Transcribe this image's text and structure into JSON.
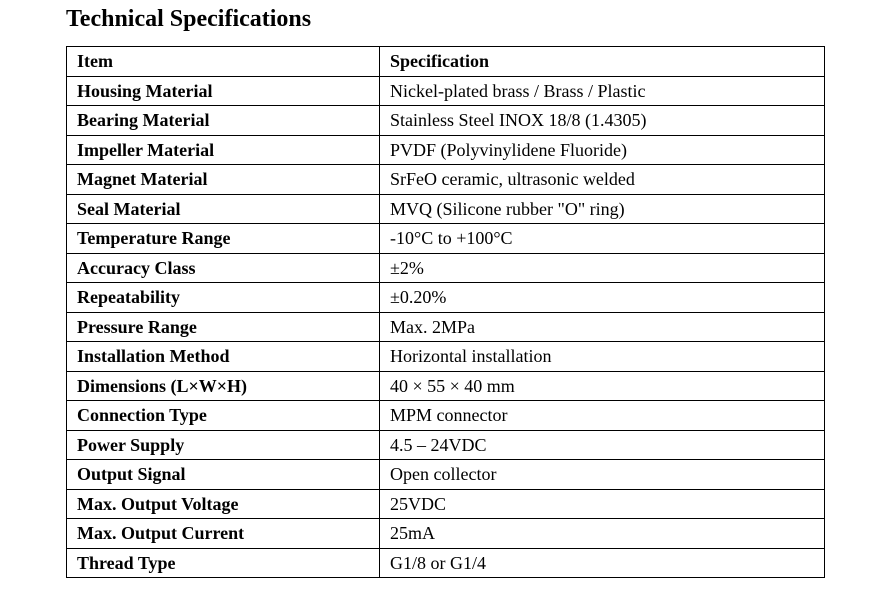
{
  "title": "Technical Specifications",
  "table": {
    "headers": [
      "Item",
      "Specification"
    ],
    "rows": [
      [
        "Housing Material",
        "Nickel-plated brass / Brass / Plastic"
      ],
      [
        "Bearing Material",
        "Stainless Steel INOX 18/8 (1.4305)"
      ],
      [
        "Impeller Material",
        "PVDF (Polyvinylidene Fluoride)"
      ],
      [
        "Magnet Material",
        "SrFeO ceramic, ultrasonic welded"
      ],
      [
        "Seal Material",
        "MVQ (Silicone rubber \"O\" ring)"
      ],
      [
        "Temperature Range",
        "-10°C to +100°C"
      ],
      [
        "Accuracy Class",
        "±2%"
      ],
      [
        "Repeatability",
        "±0.20%"
      ],
      [
        "Pressure Range",
        "Max. 2MPa"
      ],
      [
        "Installation Method",
        "Horizontal installation"
      ],
      [
        "Dimensions (L×W×H)",
        "40 × 55 × 40 mm"
      ],
      [
        "Connection Type",
        "MPM connector"
      ],
      [
        "Power Supply",
        "4.5 – 24VDC"
      ],
      [
        "Output Signal",
        "Open collector"
      ],
      [
        "Max. Output Voltage",
        "25VDC"
      ],
      [
        "Max. Output Current",
        "25mA"
      ],
      [
        "Thread Type",
        "G1/8 or G1/4"
      ]
    ]
  }
}
